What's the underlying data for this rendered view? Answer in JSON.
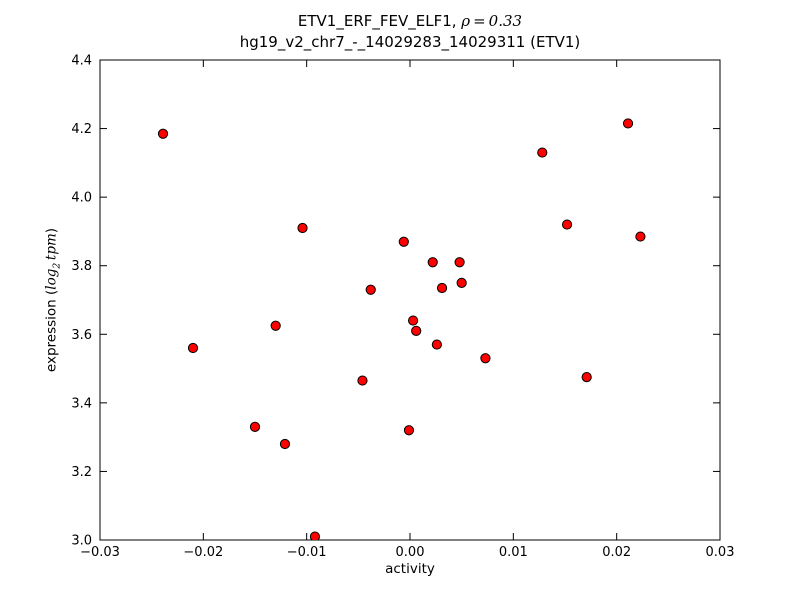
{
  "window": {
    "background": "#ffffff"
  },
  "title": {
    "line1_text": "ETV1_ERF_FEV_ELF1, ",
    "line1_math": "ρ = 0.33",
    "line2": "hg19_v2_chr7_-_14029283_14029311 (ETV1)"
  },
  "axes_labels": {
    "xlabel": "activity",
    "ylabel_prefix": "expression (",
    "ylabel_math_base": "log",
    "ylabel_math_sub": "2",
    "ylabel_math_var": "tpm",
    "ylabel_suffix": ")"
  },
  "chart_data": {
    "type": "scatter",
    "title": "ETV1_ERF_FEV_ELF1, ρ=0.33",
    "subtitle": "hg19_v2_chr7_-_14029283_14029311 (ETV1)",
    "rho": 0.33,
    "xlabel": "activity",
    "ylabel": "expression (log2 tpm)",
    "xlim": [
      -0.03,
      0.03
    ],
    "ylim": [
      3.0,
      4.4
    ],
    "xticks": [
      -0.03,
      -0.02,
      -0.01,
      0.0,
      0.01,
      0.02,
      0.03
    ],
    "xtick_labels": [
      "−0.03",
      "−0.02",
      "−0.01",
      "0.00",
      "0.01",
      "0.02",
      "0.03"
    ],
    "yticks": [
      3.0,
      3.2,
      3.4,
      3.6,
      3.8,
      4.0,
      4.2,
      4.4
    ],
    "ytick_labels": [
      "3.0",
      "3.2",
      "3.4",
      "3.6",
      "3.8",
      "4.0",
      "4.2",
      "4.4"
    ],
    "grid": false,
    "legend": null,
    "marker": {
      "shape": "circle",
      "fill": "#ff0000",
      "edge": "#000000",
      "radius_px": 4.6,
      "edge_width": 1
    },
    "axis_color": "#000000",
    "points": [
      [
        -0.0239,
        4.185
      ],
      [
        -0.021,
        3.56
      ],
      [
        -0.015,
        3.33
      ],
      [
        -0.013,
        3.625
      ],
      [
        -0.0121,
        3.28
      ],
      [
        -0.0104,
        3.91
      ],
      [
        -0.0092,
        3.01
      ],
      [
        -0.0046,
        3.465
      ],
      [
        -0.0038,
        3.73
      ],
      [
        -0.0006,
        3.87
      ],
      [
        -0.0001,
        3.32
      ],
      [
        0.0003,
        3.64
      ],
      [
        0.0006,
        3.61
      ],
      [
        0.0022,
        3.81
      ],
      [
        0.0026,
        3.57
      ],
      [
        0.0031,
        3.735
      ],
      [
        0.0048,
        3.81
      ],
      [
        0.005,
        3.75
      ],
      [
        0.0073,
        3.53
      ],
      [
        0.0128,
        4.13
      ],
      [
        0.0152,
        3.92
      ],
      [
        0.0171,
        3.475
      ],
      [
        0.0211,
        4.215
      ],
      [
        0.0223,
        3.885
      ]
    ]
  }
}
